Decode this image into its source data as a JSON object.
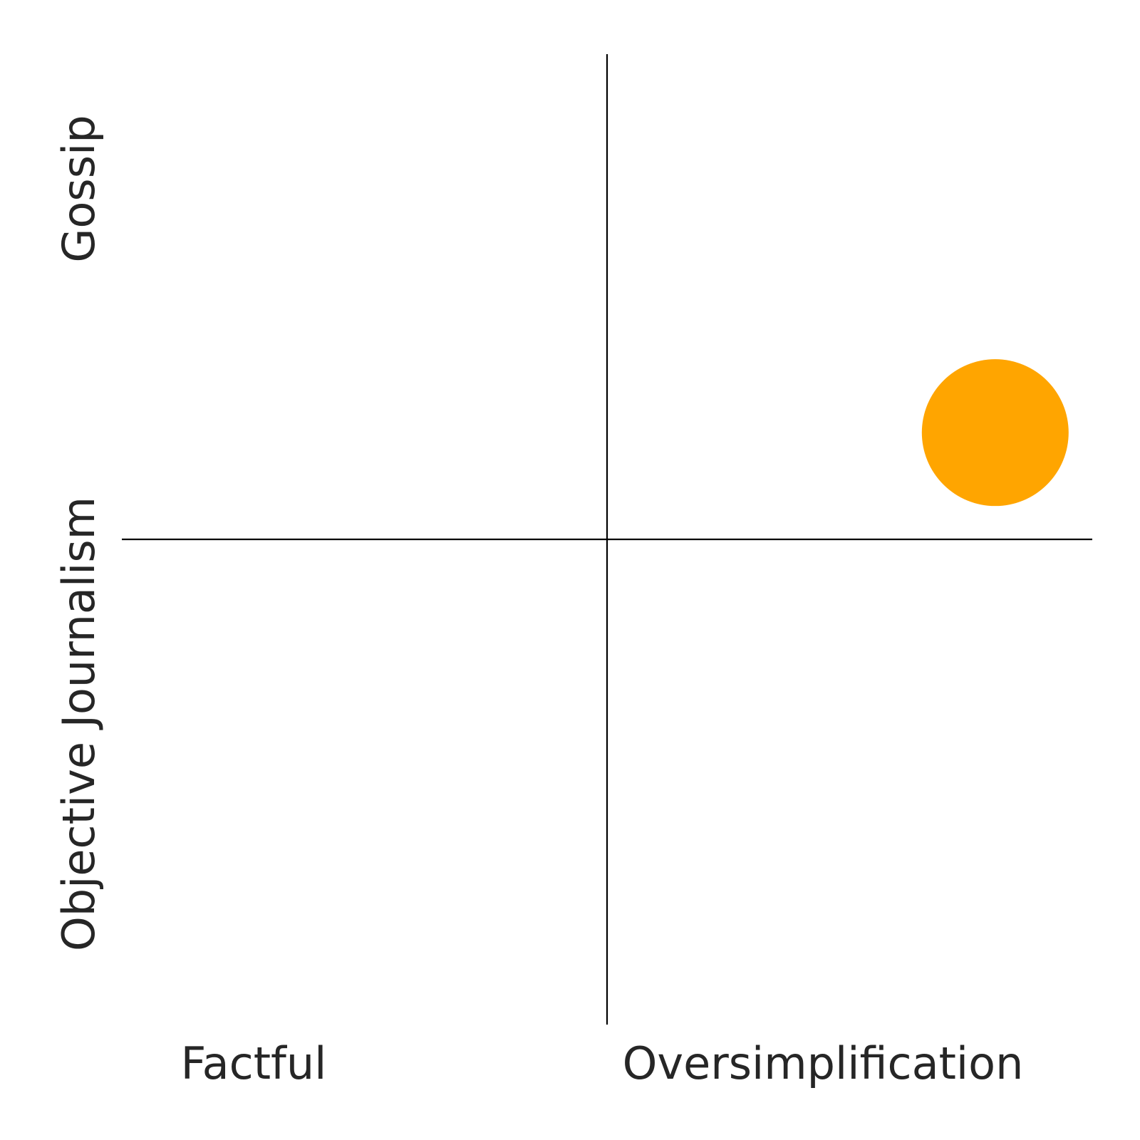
{
  "chart_data": {
    "type": "scatter",
    "title": "",
    "x_axis": {
      "range": [
        -1,
        1
      ],
      "low_label": "Factful",
      "high_label": "Oversimplification"
    },
    "y_axis": {
      "range": [
        -1,
        1
      ],
      "low_label": "Objective Journalism",
      "high_label": "Gossip"
    },
    "grid": false,
    "legend": "none",
    "points": [
      {
        "x": 0.8,
        "y": 0.22,
        "color": "#FFA500"
      }
    ]
  }
}
